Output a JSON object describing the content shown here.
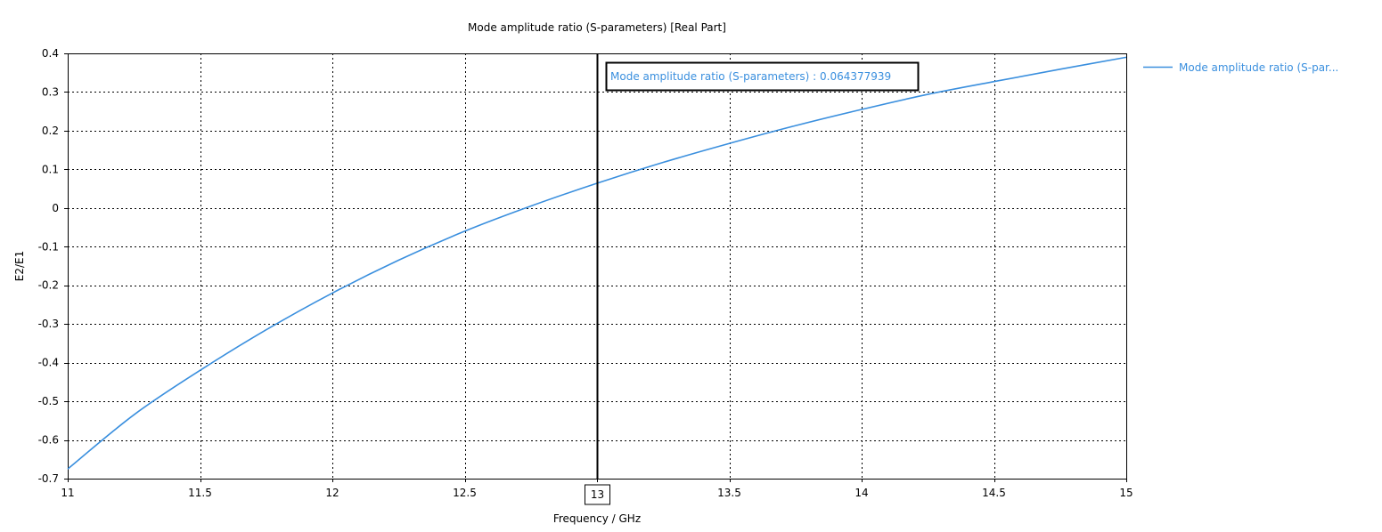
{
  "colors": {
    "series": "#3a8fde",
    "grid": "#000000",
    "axis": "#000000",
    "background": "#ffffff",
    "marker_line": "#000000"
  },
  "chart_data": {
    "type": "line",
    "title": "Mode amplitude ratio (S-parameters) [Real Part]",
    "xlabel": "Frequency / GHz",
    "ylabel": "E2/E1",
    "xlim": [
      11,
      15
    ],
    "ylim": [
      -0.7,
      0.4
    ],
    "x_ticks": [
      11,
      11.5,
      12,
      12.5,
      13,
      13.5,
      14,
      14.5,
      15
    ],
    "x_tick_labels": [
      "11",
      "11.5",
      "12",
      "12.5",
      "13",
      "13.5",
      "14",
      "14.5",
      "15"
    ],
    "y_ticks": [
      0.4,
      0.3,
      0.2,
      0.1,
      0,
      -0.1,
      -0.2,
      -0.3,
      -0.4,
      -0.5,
      -0.6,
      -0.7
    ],
    "y_tick_labels": [
      "0.4",
      "0.3",
      "0.2",
      "0.1",
      "0",
      "-0.1",
      "-0.2",
      "-0.3",
      "-0.4",
      "-0.5",
      "-0.6",
      "-0.7"
    ],
    "grid": true,
    "grid_style": "dotted",
    "legend_position": "right",
    "series": [
      {
        "name": "Mode amplitude ratio (S-par...",
        "color": "#3a8fde",
        "x": [
          11,
          11.25,
          11.5,
          11.75,
          12,
          12.25,
          12.5,
          12.75,
          13,
          13.25,
          13.5,
          13.75,
          14,
          14.25,
          14.5,
          14.75,
          15
        ],
        "y": [
          -0.675,
          -0.535,
          -0.42,
          -0.315,
          -0.22,
          -0.135,
          -0.06,
          0.005,
          0.064,
          0.118,
          0.167,
          0.213,
          0.255,
          0.294,
          0.327,
          0.359,
          0.39
        ]
      }
    ],
    "marker": {
      "x": 13,
      "x_label": "13",
      "readout": "Mode amplitude ratio (S-parameters) : 0.064377939"
    }
  }
}
